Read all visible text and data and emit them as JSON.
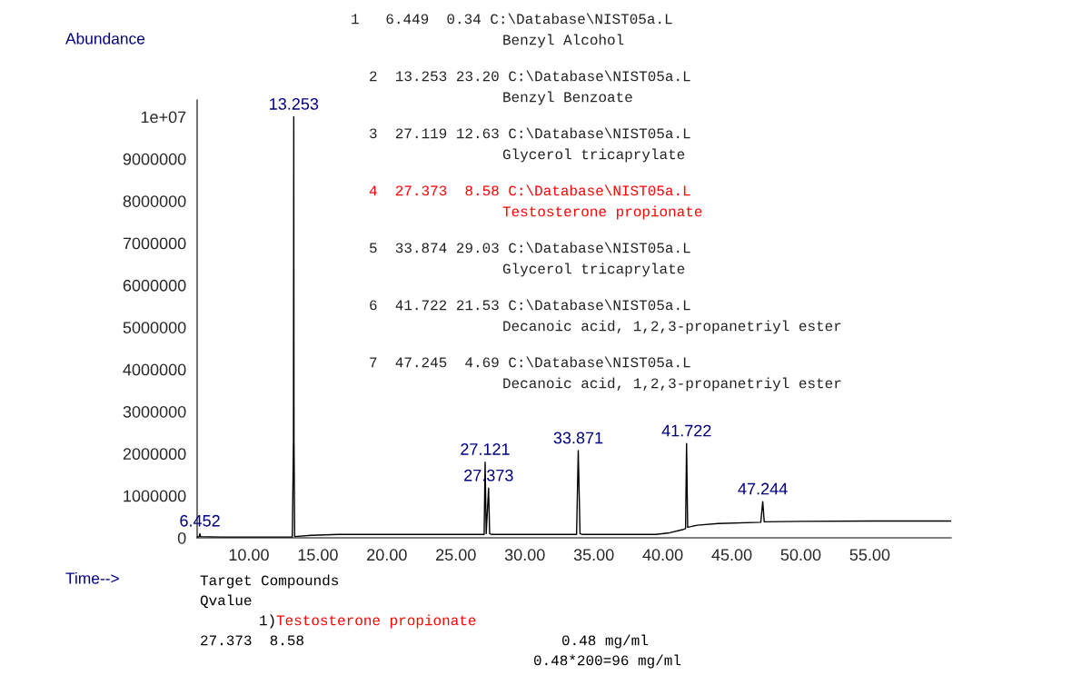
{
  "chart_data": {
    "type": "line",
    "xlabel": "Time-->",
    "ylabel": "Abundance",
    "series": [
      {
        "color": "#000000",
        "x": [
          6.25,
          6.4,
          6.452,
          6.5,
          8.0,
          13.15,
          13.23,
          13.253,
          13.27,
          13.32,
          14.5,
          16.5,
          27.05,
          27.121,
          27.2,
          27.373,
          27.45,
          27.6,
          33.75,
          33.871,
          34.0,
          34.2,
          39.5,
          40.5,
          41.5,
          41.65,
          41.722,
          41.8,
          42.5,
          44.0,
          47.1,
          47.244,
          47.35,
          50.0,
          55.0,
          60.9
        ],
        "values": [
          20000,
          30000,
          100000,
          30000,
          20000,
          20000,
          2300000,
          10000000,
          2300000,
          30000,
          60000,
          80000,
          80000,
          1800000,
          100000,
          1180000,
          100000,
          80000,
          80000,
          2070000,
          100000,
          80000,
          80000,
          120000,
          200000,
          220000,
          2240000,
          250000,
          300000,
          340000,
          370000,
          860000,
          380000,
          390000,
          400000,
          400000
        ]
      }
    ],
    "xlim": [
      6.25,
      60.9
    ],
    "xticks": [
      {
        "value": 10,
        "label": "10.00"
      },
      {
        "value": 15,
        "label": "15.00"
      },
      {
        "value": 20,
        "label": "20.00"
      },
      {
        "value": 25,
        "label": "25.00"
      },
      {
        "value": 30,
        "label": "30.00"
      },
      {
        "value": 35,
        "label": "35.00"
      },
      {
        "value": 40,
        "label": "40.00"
      },
      {
        "value": 45,
        "label": "45.00"
      },
      {
        "value": 50,
        "label": "50.00"
      },
      {
        "value": 55,
        "label": "55.00"
      }
    ],
    "ylim": [
      0,
      10400000
    ],
    "yticks": [
      0,
      1000000,
      2000000,
      3000000,
      4000000,
      5000000,
      6000000,
      7000000,
      8000000,
      9000000,
      {
        "value": 10000000,
        "label": "1e+07"
      }
    ],
    "grid": false,
    "annotations": [
      {
        "text": "6.452",
        "x": 6.452,
        "y": 100000
      },
      {
        "text": "13.253",
        "x": 13.253,
        "y": 10000000
      },
      {
        "text": "27.121",
        "x": 27.121,
        "y": 1800000
      },
      {
        "text": "27.373",
        "x": 27.373,
        "y": 1180000
      },
      {
        "text": "33.871",
        "x": 33.871,
        "y": 2070000
      },
      {
        "text": "41.722",
        "x": 41.722,
        "y": 2240000
      },
      {
        "text": "47.244",
        "x": 47.244,
        "y": 860000
      },
      "1   6.449  0.34 C:\\Database\\NIST05a.L",
      "Benzyl Alcohol",
      "2  13.253 23.20 C:\\Database\\NIST05a.L",
      "Benzyl Benzoate",
      "3  27.119 12.63 C:\\Database\\NIST05a.L",
      "Glycerol tricaprylate",
      "4  27.373  8.58 C:\\Database\\NIST05a.L",
      "Testosterone propionate",
      "5  33.874 29.03 C:\\Database\\NIST05a.L",
      "Glycerol tricaprylate",
      "6  41.722 21.53 C:\\Database\\NIST05a.L",
      "Decanoic acid, 1,2,3-propanetriyl ester",
      "7  47.245  4.69 C:\\Database\\NIST05a.L",
      "Decanoic acid, 1,2,3-propanetriyl ester",
      "Target Compounds",
      "Qvalue",
      "1)",
      "Testosterone propionate",
      "27.373  8.58",
      "0.48 mg/ml",
      "0.48*200=96 mg/ml"
    ]
  }
}
